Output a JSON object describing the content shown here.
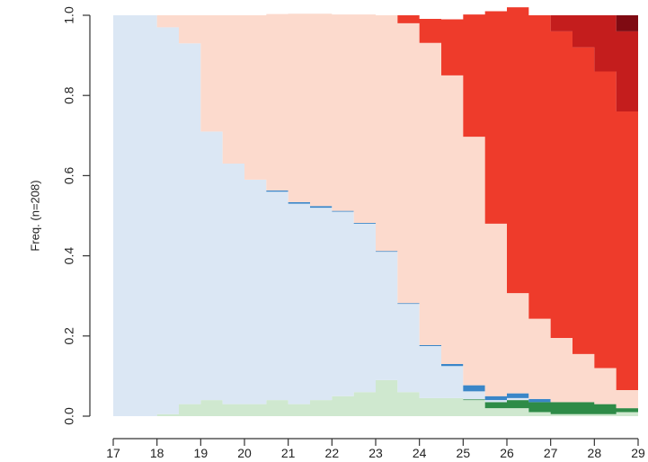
{
  "chart_data": {
    "type": "area",
    "title": "",
    "xlabel": "",
    "ylabel": "Freq. (n=208)",
    "xlim": [
      17,
      29
    ],
    "ylim": [
      0,
      1
    ],
    "x_ticks": [
      "17",
      "18",
      "19",
      "20",
      "21",
      "22",
      "23",
      "24",
      "25",
      "26",
      "27",
      "28",
      "29"
    ],
    "y_ticks": [
      "0.0",
      "0.2",
      "0.4",
      "0.6",
      "0.8",
      "1.0"
    ],
    "grid": false,
    "legend": "none",
    "x": [
      17,
      17.5,
      18,
      18.5,
      19,
      19.5,
      20,
      20.5,
      21,
      21.5,
      22,
      22.5,
      23,
      23.5,
      24,
      24.5,
      25,
      25.5,
      26,
      26.5,
      27,
      27.5,
      28,
      28.5,
      29
    ],
    "series": [
      {
        "color": "#cfe8cf",
        "values": [
          0.0,
          0.0,
          0.005,
          0.03,
          0.04,
          0.03,
          0.03,
          0.04,
          0.03,
          0.04,
          0.05,
          0.06,
          0.09,
          0.06,
          0.045,
          0.045,
          0.04,
          0.02,
          0.02,
          0.01,
          0.005,
          0.005,
          0.005,
          0.01,
          0.02
        ]
      },
      {
        "color": "#2e8b47",
        "values": [
          0.0,
          0.0,
          0.0,
          0.0,
          0.0,
          0.0,
          0.0,
          0.0,
          0.0,
          0.0,
          0.0,
          0.0,
          0.0,
          0.0,
          0.0,
          0.0,
          0.002,
          0.015,
          0.02,
          0.025,
          0.03,
          0.03,
          0.025,
          0.01,
          0.035
        ]
      },
      {
        "color": "#dbe7f4",
        "values": [
          1.0,
          1.0,
          0.965,
          0.9,
          0.67,
          0.6,
          0.56,
          0.52,
          0.5,
          0.48,
          0.46,
          0.42,
          0.32,
          0.22,
          0.13,
          0.08,
          0.02,
          0.005,
          0.005,
          0.0,
          0.0,
          0.0,
          0.0,
          0.0,
          0.0
        ]
      },
      {
        "color": "#3a86c8",
        "values": [
          0.0,
          0.0,
          0.0,
          0.0,
          0.0,
          0.0,
          0.0,
          0.003,
          0.004,
          0.004,
          0.002,
          0.002,
          0.002,
          0.002,
          0.002,
          0.005,
          0.015,
          0.01,
          0.012,
          0.008,
          0.0,
          0.0,
          0.0,
          0.0,
          0.0
        ]
      },
      {
        "color": "#fcdacd",
        "values": [
          0.0,
          0.0,
          0.03,
          0.07,
          0.29,
          0.37,
          0.41,
          0.44,
          0.47,
          0.48,
          0.49,
          0.52,
          0.588,
          0.698,
          0.754,
          0.72,
          0.62,
          0.43,
          0.25,
          0.2,
          0.16,
          0.12,
          0.09,
          0.045,
          0.025
        ]
      },
      {
        "color": "#ee3b2b",
        "values": [
          0.0,
          0.0,
          0.0,
          0.0,
          0.0,
          0.0,
          0.0,
          0.0,
          0.0,
          0.0,
          0.0,
          0.0,
          0.0,
          0.02,
          0.06,
          0.14,
          0.305,
          0.53,
          0.713,
          0.757,
          0.765,
          0.765,
          0.74,
          0.695,
          0.63
        ]
      },
      {
        "color": "#c41d1d",
        "values": [
          0.0,
          0.0,
          0.0,
          0.0,
          0.0,
          0.0,
          0.0,
          0.0,
          0.0,
          0.0,
          0.0,
          0.0,
          0.0,
          0.0,
          0.0,
          0.0,
          0.0,
          0.0,
          0.0,
          0.0,
          0.04,
          0.08,
          0.14,
          0.2,
          0.21
        ]
      },
      {
        "color": "#7f0a12",
        "values": [
          0.0,
          0.0,
          0.0,
          0.0,
          0.0,
          0.0,
          0.0,
          0.0,
          0.0,
          0.0,
          0.0,
          0.0,
          0.0,
          0.0,
          0.0,
          0.0,
          0.0,
          0.0,
          0.0,
          0.0,
          0.0,
          0.0,
          0.0,
          0.04,
          0.08
        ]
      }
    ]
  }
}
